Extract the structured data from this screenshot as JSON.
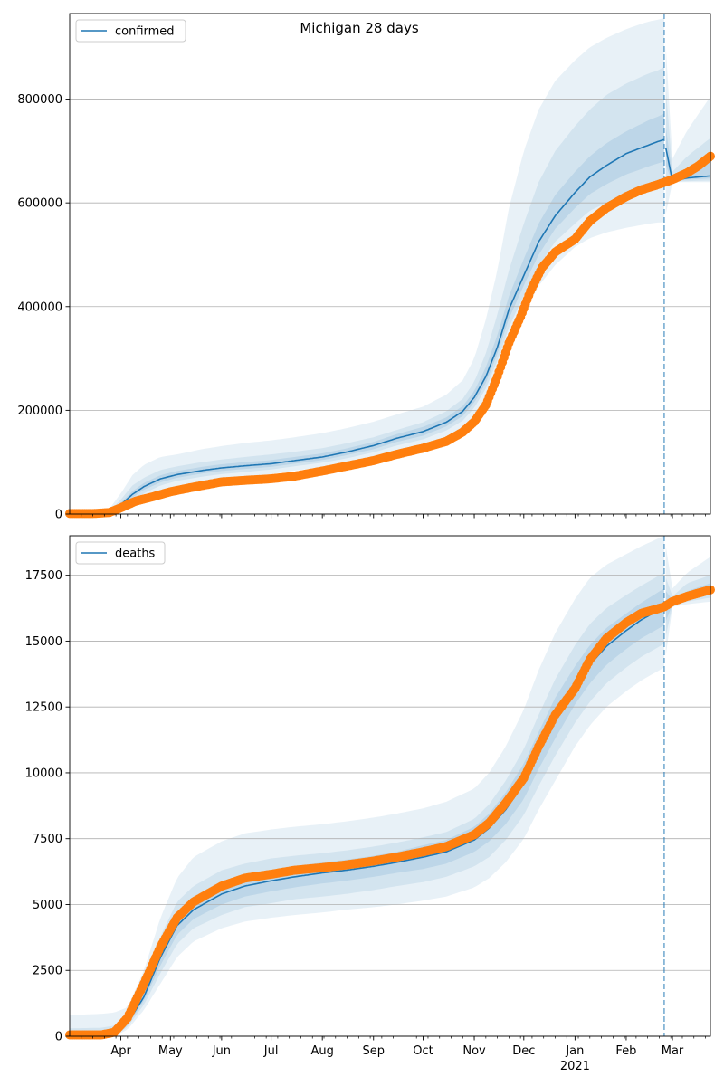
{
  "figure": {
    "title": "Michigan 28 days"
  },
  "colors": {
    "model_line": "#1f77b4",
    "observed": "#ff7f0e",
    "band": "#1f77b4",
    "grid": "#b0b0b0",
    "divider": "#1f77b4"
  },
  "x_axis": {
    "start": "2020-03-01",
    "end": "2021-03-24",
    "major_ticks": [
      {
        "date": "2020-04-01",
        "label": "Apr"
      },
      {
        "date": "2020-05-01",
        "label": "May"
      },
      {
        "date": "2020-06-01",
        "label": "Jun"
      },
      {
        "date": "2020-07-01",
        "label": "Jul"
      },
      {
        "date": "2020-08-01",
        "label": "Aug"
      },
      {
        "date": "2020-09-01",
        "label": "Sep"
      },
      {
        "date": "2020-10-01",
        "label": "Oct"
      },
      {
        "date": "2020-11-01",
        "label": "Nov"
      },
      {
        "date": "2020-12-01",
        "label": "Dec"
      },
      {
        "date": "2021-01-01",
        "label": "Jan"
      },
      {
        "date": "2021-02-01",
        "label": "Feb"
      },
      {
        "date": "2021-03-01",
        "label": "Mar"
      }
    ],
    "year_label": {
      "date": "2021-01-01",
      "label": "2021"
    },
    "forecast_start": "2021-02-24"
  },
  "chart_data": [
    {
      "type": "line",
      "title": "Michigan 28 days",
      "legend": {
        "label": "confirmed",
        "placement": "top-left"
      },
      "grid": true,
      "ylim": [
        0,
        965000
      ],
      "y_ticks": [
        {
          "value": 0,
          "label": "0"
        },
        {
          "value": 200000,
          "label": "200000"
        },
        {
          "value": 400000,
          "label": "400000"
        },
        {
          "value": 600000,
          "label": "600000"
        },
        {
          "value": 800000,
          "label": "800000"
        }
      ],
      "model": {
        "name": "confirmed",
        "x": [
          "2020-03-01",
          "2020-03-15",
          "2020-03-25",
          "2020-04-01",
          "2020-04-08",
          "2020-04-15",
          "2020-04-25",
          "2020-05-05",
          "2020-05-20",
          "2020-06-01",
          "2020-06-15",
          "2020-07-01",
          "2020-07-15",
          "2020-08-01",
          "2020-08-15",
          "2020-09-01",
          "2020-09-15",
          "2020-10-01",
          "2020-10-15",
          "2020-10-25",
          "2020-11-01",
          "2020-11-08",
          "2020-11-15",
          "2020-11-22",
          "2020-12-01",
          "2020-12-10",
          "2020-12-20",
          "2021-01-01",
          "2021-01-10",
          "2021-01-20",
          "2021-02-01",
          "2021-02-10",
          "2021-02-15",
          "2021-02-20",
          "2021-02-24",
          "2021-03-01",
          "2021-03-10",
          "2021-03-24"
        ],
        "y": [
          0,
          0,
          3000,
          18000,
          38000,
          53000,
          68000,
          76000,
          84000,
          89000,
          93000,
          97000,
          103000,
          110000,
          119000,
          132000,
          146000,
          159000,
          177000,
          198000,
          225000,
          265000,
          322000,
          395000,
          460000,
          525000,
          575000,
          620000,
          650000,
          672000,
          695000,
          706000,
          712000,
          718000,
          722000,
          642000,
          648000,
          652000
        ],
        "bands": [
          {
            "lower": [
              0,
              0,
              0,
              3000,
              15000,
              30000,
              45000,
              55000,
              63000,
              68000,
              72000,
              77000,
              84000,
              90000,
              98000,
              108000,
              120000,
              131000,
              146000,
              163000,
              185000,
              220000,
              268000,
              330000,
              385000,
              440000,
              480000,
              515000,
              532000,
              543000,
              552000,
              557000,
              560000,
              562000,
              563000,
              640000,
              640000,
              640000
            ],
            "upper": [
              0,
              0,
              10000,
              40000,
              75000,
              95000,
              110000,
              115000,
              125000,
              131000,
              137000,
              142000,
              148000,
              156000,
              165000,
              178000,
              192000,
              207000,
              230000,
              258000,
              300000,
              375000,
              470000,
              590000,
              700000,
              780000,
              835000,
              875000,
              900000,
              918000,
              935000,
              945000,
              950000,
              953000,
              956000,
              685000,
              740000,
              805000
            ]
          },
          {
            "lower": [
              0,
              0,
              1000,
              10000,
              26000,
              40000,
              55000,
              64000,
              72000,
              77000,
              81000,
              86000,
              92000,
              99000,
              107000,
              119000,
              132000,
              144000,
              161000,
              180000,
              205000,
              242000,
              296000,
              360000,
              422000,
              478000,
              525000,
              560000,
              585000,
              600000,
              615000,
              625000,
              630000,
              633000,
              635000,
              641000,
              642000,
              643000
            ],
            "upper": [
              0,
              0,
              6000,
              28000,
              55000,
              70000,
              85000,
              92000,
              100000,
              105000,
              110000,
              115000,
              120000,
              127000,
              136000,
              148000,
              162000,
              177000,
              198000,
              222000,
              255000,
              310000,
              385000,
              470000,
              560000,
              640000,
              700000,
              748000,
              780000,
              808000,
              830000,
              843000,
              850000,
              855000,
              862000,
              660000,
              690000,
              725000
            ]
          },
          {
            "lower": [
              0,
              0,
              2000,
              14000,
              32000,
              47000,
              61000,
              70000,
              78000,
              83000,
              87000,
              91000,
              97000,
              104000,
              113000,
              125000,
              139000,
              151000,
              169000,
              189000,
              215000,
              253000,
              309000,
              377000,
              441000,
              500000,
              550000,
              590000,
              617000,
              636000,
              655000,
              665000,
              671000,
              676000,
              680000,
              641000,
              645000,
              647000
            ],
            "upper": [
              0,
              0,
              4000,
              22000,
              44000,
              60000,
              75000,
              83000,
              91000,
              96000,
              100000,
              104000,
              110000,
              117000,
              126000,
              139000,
              154000,
              168000,
              186000,
              208000,
              237000,
              283000,
              345000,
              420000,
              492000,
              560000,
              615000,
              660000,
              690000,
              715000,
              738000,
              752000,
              760000,
              766000,
              772000,
              650000,
              665000,
              680000
            ]
          }
        ]
      },
      "observed": {
        "x": [
          "2020-03-01",
          "2020-03-15",
          "2020-03-25",
          "2020-04-01",
          "2020-04-10",
          "2020-04-20",
          "2020-05-01",
          "2020-05-15",
          "2020-06-01",
          "2020-06-15",
          "2020-07-01",
          "2020-07-15",
          "2020-08-01",
          "2020-08-15",
          "2020-09-01",
          "2020-09-15",
          "2020-10-01",
          "2020-10-15",
          "2020-10-25",
          "2020-11-01",
          "2020-11-08",
          "2020-11-15",
          "2020-11-22",
          "2020-11-29",
          "2020-12-05",
          "2020-12-12",
          "2020-12-20",
          "2021-01-01",
          "2021-01-10",
          "2021-01-20",
          "2021-02-01",
          "2021-02-10",
          "2021-02-20",
          "2021-03-01",
          "2021-03-10",
          "2021-03-17",
          "2021-03-24"
        ],
        "y": [
          1000,
          1000,
          3000,
          12000,
          25000,
          33000,
          43000,
          52000,
          62000,
          65000,
          68000,
          73000,
          83000,
          92000,
          103000,
          115000,
          127000,
          140000,
          158000,
          178000,
          210000,
          265000,
          330000,
          380000,
          430000,
          475000,
          505000,
          530000,
          565000,
          590000,
          612000,
          625000,
          635000,
          645000,
          658000,
          672000,
          690000
        ]
      }
    },
    {
      "type": "line",
      "legend": {
        "label": "deaths",
        "placement": "top-left"
      },
      "grid": true,
      "ylim": [
        0,
        19000
      ],
      "y_ticks": [
        {
          "value": 0,
          "label": "0"
        },
        {
          "value": 2500,
          "label": "2500"
        },
        {
          "value": 5000,
          "label": "5000"
        },
        {
          "value": 7500,
          "label": "7500"
        },
        {
          "value": 10000,
          "label": "10000"
        },
        {
          "value": 12500,
          "label": "12500"
        },
        {
          "value": 15000,
          "label": "15000"
        },
        {
          "value": 17500,
          "label": "17500"
        }
      ],
      "model": {
        "name": "deaths",
        "x": [
          "2020-03-01",
          "2020-03-20",
          "2020-03-28",
          "2020-04-05",
          "2020-04-15",
          "2020-04-25",
          "2020-05-05",
          "2020-05-15",
          "2020-06-01",
          "2020-06-15",
          "2020-07-01",
          "2020-07-15",
          "2020-08-01",
          "2020-08-15",
          "2020-09-01",
          "2020-09-15",
          "2020-10-01",
          "2020-10-15",
          "2020-11-01",
          "2020-11-10",
          "2020-11-20",
          "2020-12-01",
          "2020-12-10",
          "2020-12-20",
          "2021-01-01",
          "2021-01-10",
          "2021-01-20",
          "2021-02-01",
          "2021-02-10",
          "2021-02-24",
          "2021-03-01",
          "2021-03-10",
          "2021-03-24"
        ],
        "y": [
          0,
          0,
          50,
          500,
          1500,
          3000,
          4200,
          4800,
          5400,
          5700,
          5900,
          6050,
          6200,
          6300,
          6450,
          6600,
          6800,
          7000,
          7450,
          7900,
          8600,
          9600,
          10800,
          12000,
          13300,
          14100,
          14800,
          15400,
          15800,
          16300,
          16400,
          16650,
          16950
        ],
        "bands": [
          {
            "lower": [
              0,
              0,
              0,
              250,
              1000,
              2000,
              3000,
              3600,
              4100,
              4350,
              4500,
              4600,
              4700,
              4800,
              4900,
              5000,
              5150,
              5300,
              5650,
              6000,
              6600,
              7500,
              8600,
              9700,
              11000,
              11800,
              12500,
              13100,
              13500,
              14000,
              16300,
              16400,
              16500
            ],
            "upper": [
              800,
              850,
              900,
              1100,
              2500,
              4500,
              6000,
              6800,
              7400,
              7700,
              7850,
              7950,
              8050,
              8150,
              8300,
              8450,
              8650,
              8900,
              9400,
              10000,
              11000,
              12400,
              13900,
              15300,
              16600,
              17400,
              17900,
              18300,
              18600,
              19000,
              17000,
              17600,
              18200
            ]
          },
          {
            "lower": [
              0,
              0,
              0,
              350,
              1200,
              2400,
              3500,
              4100,
              4600,
              4900,
              5050,
              5200,
              5300,
              5400,
              5550,
              5700,
              5850,
              6050,
              6450,
              6800,
              7450,
              8400,
              9500,
              10650,
              11900,
              12700,
              13400,
              14000,
              14400,
              14900,
              16350,
              16500,
              16650
            ],
            "upper": [
              300,
              320,
              400,
              750,
              2000,
              3800,
              5100,
              5700,
              6300,
              6550,
              6750,
              6850,
              6950,
              7050,
              7200,
              7350,
              7550,
              7750,
              8250,
              8800,
              9700,
              10900,
              12200,
              13550,
              14850,
              15650,
              16250,
              16750,
              17100,
              17600,
              16700,
              17200,
              17500
            ]
          },
          {
            "lower": [
              0,
              0,
              0,
              420,
              1350,
              2700,
              3850,
              4450,
              5000,
              5300,
              5500,
              5650,
              5800,
              5900,
              6050,
              6200,
              6350,
              6550,
              7000,
              7400,
              8050,
              9000,
              10150,
              11300,
              12600,
              13400,
              14100,
              14700,
              15100,
              15600,
              16380,
              16580,
              16780
            ],
            "upper": [
              100,
              120,
              200,
              600,
              1700,
              3350,
              4600,
              5200,
              5800,
              6100,
              6300,
              6450,
              6600,
              6700,
              6850,
              7000,
              7250,
              7450,
              7950,
              8450,
              9250,
              10350,
              11550,
              12850,
              14050,
              14850,
              15500,
              16050,
              16450,
              17000,
              16550,
              16900,
              17200
            ]
          }
        ]
      },
      "observed": {
        "x": [
          "2020-03-01",
          "2020-03-20",
          "2020-03-28",
          "2020-04-05",
          "2020-04-15",
          "2020-04-25",
          "2020-05-05",
          "2020-05-15",
          "2020-06-01",
          "2020-06-15",
          "2020-07-01",
          "2020-07-15",
          "2020-08-01",
          "2020-08-15",
          "2020-09-01",
          "2020-09-15",
          "2020-10-01",
          "2020-10-15",
          "2020-11-01",
          "2020-11-10",
          "2020-11-20",
          "2020-12-01",
          "2020-12-10",
          "2020-12-20",
          "2021-01-01",
          "2021-01-10",
          "2021-01-20",
          "2021-02-01",
          "2021-02-10",
          "2021-02-24",
          "2021-03-01",
          "2021-03-10",
          "2021-03-24"
        ],
        "y": [
          50,
          50,
          150,
          700,
          2000,
          3400,
          4500,
          5100,
          5700,
          6000,
          6150,
          6300,
          6400,
          6500,
          6650,
          6800,
          7000,
          7200,
          7650,
          8100,
          8850,
          9800,
          11000,
          12200,
          13200,
          14300,
          15100,
          15700,
          16050,
          16300,
          16500,
          16700,
          16950
        ]
      }
    }
  ]
}
